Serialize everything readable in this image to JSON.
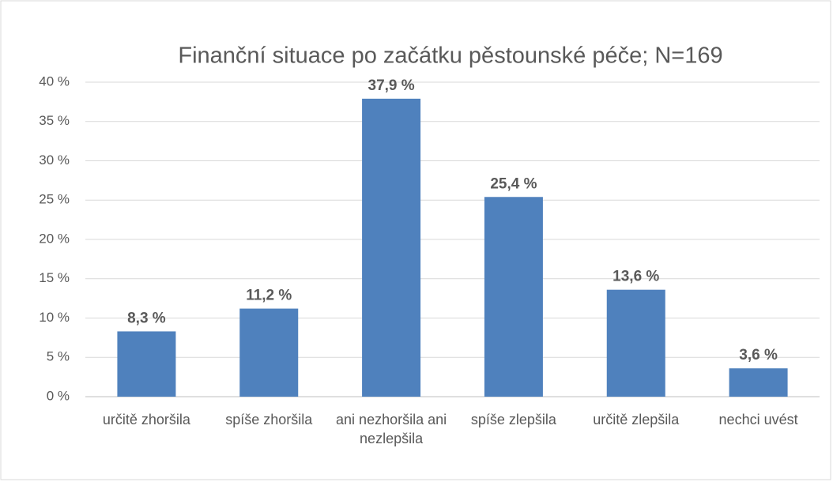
{
  "chart_data": {
    "type": "bar",
    "title": "Finanční situace po začátku pěstounské péče; N=169",
    "categories": [
      "určitě zhoršila",
      "spíše zhoršila",
      "ani nezhoršila ani nezlepšila",
      "spíše zlepšila",
      "určitě zlepšila",
      "nechci uvést"
    ],
    "values": [
      8.3,
      11.2,
      37.9,
      25.4,
      13.6,
      3.6
    ],
    "value_labels": [
      "8,3 %",
      "11,2 %",
      "37,9 %",
      "25,4 %",
      "13,6 %",
      "3,6 %"
    ],
    "color": "#4f81bd",
    "ylim": [
      0,
      40
    ],
    "yticks": [
      {
        "value": 0,
        "label": "0 %"
      },
      {
        "value": 5,
        "label": "5 %"
      },
      {
        "value": 10,
        "label": "10 %"
      },
      {
        "value": 15,
        "label": "15 %"
      },
      {
        "value": 20,
        "label": "20 %"
      },
      {
        "value": 25,
        "label": "25 %"
      },
      {
        "value": 30,
        "label": "30 %"
      },
      {
        "value": 35,
        "label": "35 %"
      },
      {
        "value": 40,
        "label": "40 %"
      }
    ],
    "grid": true
  }
}
